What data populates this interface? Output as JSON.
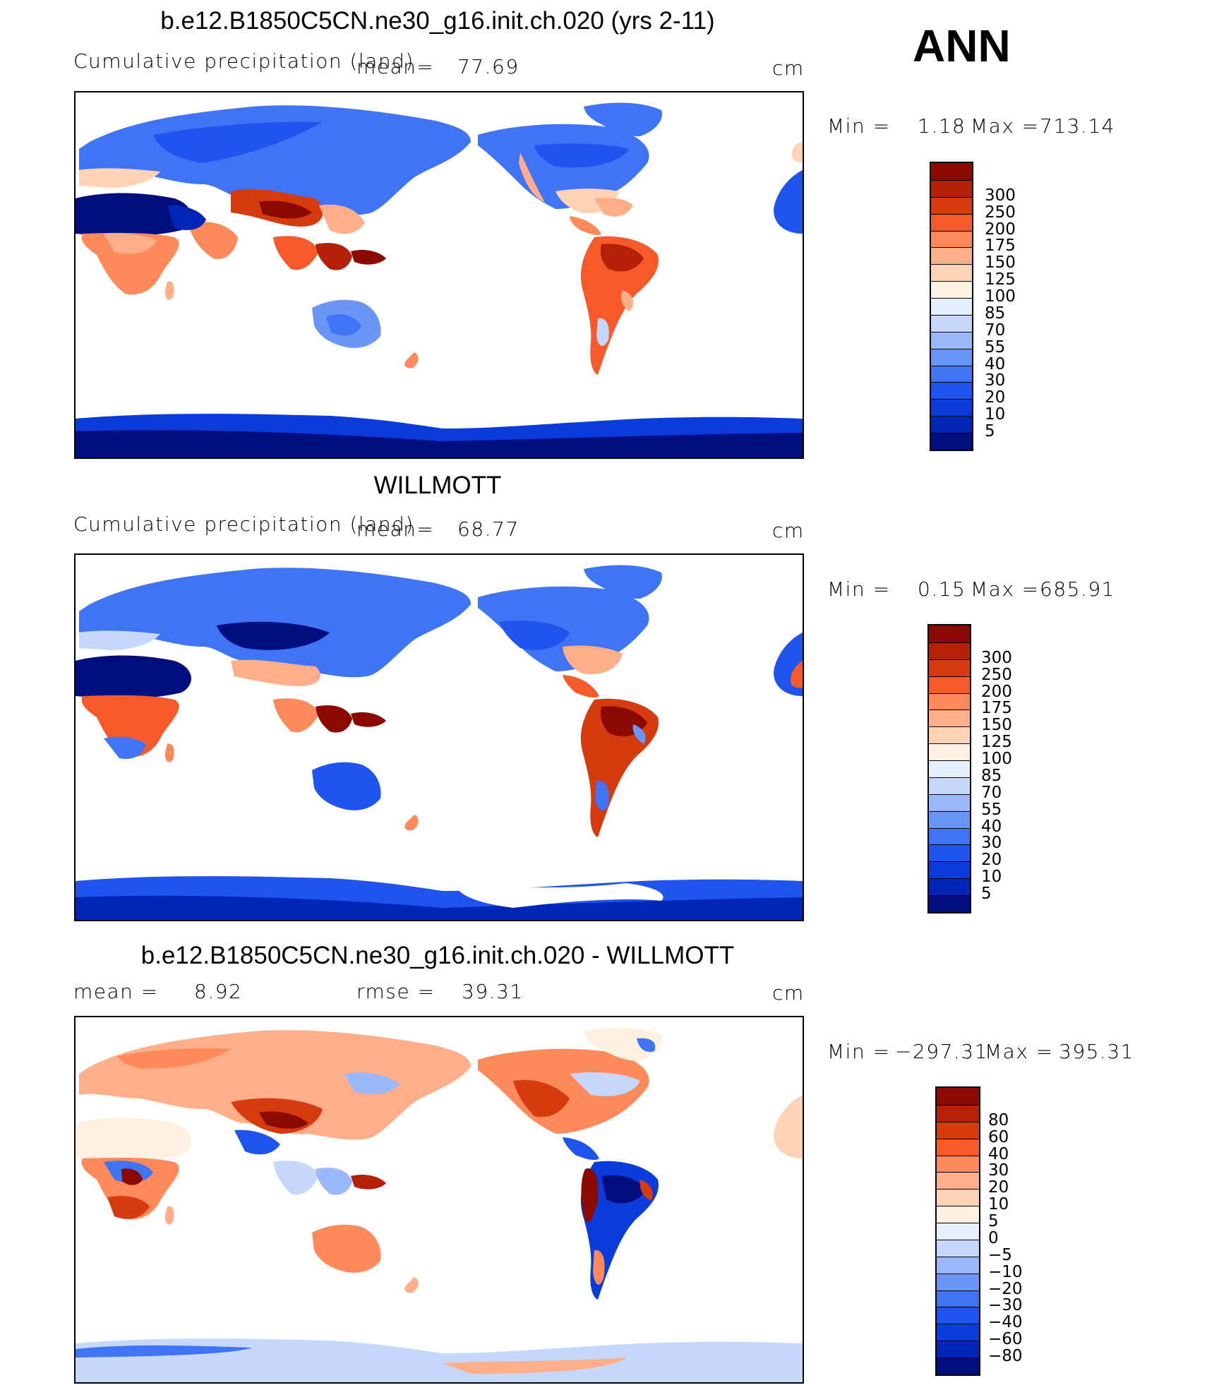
{
  "figure_label": "ANN",
  "panels": [
    {
      "title": "b.e12.B1850C5CN.ne30_g16.init.ch.020 (yrs 2-11)",
      "field_label": "Cumulative precipitation (land)",
      "mean_label": "mean=",
      "mean_value": "77.69",
      "units": "cm",
      "min_label": "Min =",
      "min_value": "1.18",
      "max_label": "Max =",
      "max_value": "713.14"
    },
    {
      "title": "WILLMOTT",
      "field_label": "Cumulative precipitation (land)",
      "mean_label": "mean=",
      "mean_value": "68.77",
      "units": "cm",
      "min_label": "Min =",
      "min_value": "0.15",
      "max_label": "Max =",
      "max_value": "685.91"
    },
    {
      "title": "b.e12.B1850C5CN.ne30_g16.init.ch.020 - WILLMOTT",
      "mean_label": "mean =",
      "mean_value": "8.92",
      "rmse_label": "rmse =",
      "rmse_value": "39.31",
      "units": "cm",
      "min_label": "Min =",
      "min_value": "−297.31",
      "max_label": "Max =",
      "max_value": "395.31"
    }
  ],
  "chart_data": [
    {
      "type": "heatmap",
      "title": "b.e12.B1850C5CN.ne30_g16.init.ch.020 (yrs 2-11)",
      "subtitle": "Cumulative precipitation (land)",
      "units": "cm",
      "mean": 77.69,
      "min": 1.18,
      "max": 713.14,
      "colorbar": {
        "levels": [
          5,
          10,
          20,
          30,
          40,
          55,
          70,
          85,
          100,
          125,
          150,
          175,
          200,
          250,
          300
        ],
        "colors": [
          "#000e80",
          "#0026b8",
          "#0a3cdb",
          "#1f55ee",
          "#3f74f6",
          "#6a96f8",
          "#9ab8fa",
          "#c5d8fb",
          "#e6efff",
          "#fff0e0",
          "#ffd2b6",
          "#ffae8a",
          "#fe8a5c",
          "#f65a2a",
          "#d63a0f",
          "#b42008",
          "#8a0a02"
        ]
      }
    },
    {
      "type": "heatmap",
      "title": "WILLMOTT",
      "subtitle": "Cumulative precipitation (land)",
      "units": "cm",
      "mean": 68.77,
      "min": 0.15,
      "max": 685.91,
      "colorbar": {
        "levels": [
          5,
          10,
          20,
          30,
          40,
          55,
          70,
          85,
          100,
          125,
          150,
          175,
          200,
          250,
          300
        ],
        "colors": [
          "#000e80",
          "#0026b8",
          "#0a3cdb",
          "#1f55ee",
          "#3f74f6",
          "#6a96f8",
          "#9ab8fa",
          "#c5d8fb",
          "#e6efff",
          "#fff0e0",
          "#ffd2b6",
          "#ffae8a",
          "#fe8a5c",
          "#f65a2a",
          "#d63a0f",
          "#b42008",
          "#8a0a02"
        ]
      }
    },
    {
      "type": "heatmap",
      "title": "b.e12.B1850C5CN.ne30_g16.init.ch.020 - WILLMOTT",
      "units": "cm",
      "mean": 8.92,
      "rmse": 39.31,
      "min": -297.31,
      "max": 395.31,
      "colorbar": {
        "levels": [
          -80,
          -60,
          -40,
          -30,
          -20,
          -10,
          -5,
          0,
          5,
          10,
          20,
          30,
          40,
          60,
          80
        ],
        "level_labels": [
          "−80",
          "−60",
          "−40",
          "−30",
          "−20",
          "−10",
          "−5",
          "0",
          "5",
          "10",
          "20",
          "30",
          "40",
          "60",
          "80"
        ],
        "colors": [
          "#000e80",
          "#0026b8",
          "#0a3cdb",
          "#1f55ee",
          "#3f74f6",
          "#6a96f8",
          "#9ab8fa",
          "#c5d8fb",
          "#e6efff",
          "#fff0e0",
          "#ffd2b6",
          "#ffae8a",
          "#fe8a5c",
          "#f65a2a",
          "#d63a0f",
          "#b42008",
          "#8a0a02"
        ]
      }
    }
  ]
}
